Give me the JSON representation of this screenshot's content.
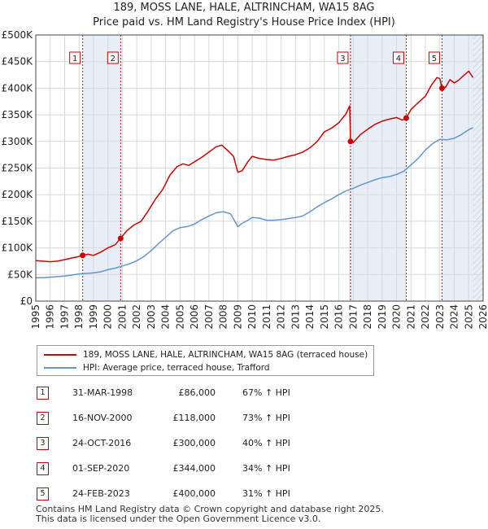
{
  "title_line1": "189, MOSS LANE, HALE, ALTRINCHAM, WA15 8AG",
  "title_line2": "Price paid vs. HM Land Registry's House Price Index (HPI)",
  "colors": {
    "property": "#cc0000",
    "hpi": "#6495cd",
    "shade": "#e8eef8",
    "grid": "#d8d8d8"
  },
  "legend": {
    "property_label": "189, MOSS LANE, HALE, ALTRINCHAM, WA15 8AG (terraced house)",
    "hpi_label": "HPI: Average price, terraced house, Trafford"
  },
  "sales": [
    {
      "num": "1",
      "date": "31-MAR-1998",
      "price": "£86,000",
      "hpi": "67% ↑ HPI"
    },
    {
      "num": "2",
      "date": "16-NOV-2000",
      "price": "£118,000",
      "hpi": "73% ↑ HPI"
    },
    {
      "num": "3",
      "date": "24-OCT-2016",
      "price": "£300,000",
      "hpi": "40% ↑ HPI"
    },
    {
      "num": "4",
      "date": "01-SEP-2020",
      "price": "£344,000",
      "hpi": "34% ↑ HPI"
    },
    {
      "num": "5",
      "date": "24-FEB-2023",
      "price": "£400,000",
      "hpi": "31% ↑ HPI"
    }
  ],
  "footer_line1": "Contains HM Land Registry data © Crown copyright and database right 2025.",
  "footer_line2": "This data is licensed under the Open Government Licence v3.0.",
  "chart_data": {
    "type": "line",
    "title": "189, MOSS LANE, HALE, ALTRINCHAM, WA15 8AG",
    "subtitle": "Price paid vs. HM Land Registry's House Price Index (HPI)",
    "xlabel": "",
    "ylabel": "",
    "xlim": [
      1995,
      2026
    ],
    "ylim": [
      0,
      500000
    ],
    "yticks": [
      0,
      50000,
      100000,
      150000,
      200000,
      250000,
      300000,
      350000,
      400000,
      450000,
      500000
    ],
    "ytick_labels": [
      "£0",
      "£50K",
      "£100K",
      "£150K",
      "£200K",
      "£250K",
      "£300K",
      "£350K",
      "£400K",
      "£450K",
      "£500K"
    ],
    "xticks": [
      "1995",
      "1996",
      "1997",
      "1998",
      "1999",
      "2000",
      "2001",
      "2002",
      "2003",
      "2004",
      "2005",
      "2006",
      "2007",
      "2008",
      "2009",
      "2010",
      "2011",
      "2012",
      "2013",
      "2014",
      "2015",
      "2016",
      "2017",
      "2018",
      "2019",
      "2020",
      "2021",
      "2022",
      "2023",
      "2024",
      "2025",
      "2026"
    ],
    "grid": true,
    "series": [
      {
        "name": "189, MOSS LANE, HALE, ALTRINCHAM, WA15 8AG (terraced house)",
        "color": "#cc0000",
        "x": [
          1995.0,
          1995.5,
          1996.0,
          1996.5,
          1997.0,
          1997.5,
          1998.0,
          1998.25,
          1998.6,
          1999.0,
          1999.5,
          2000.0,
          2000.5,
          2000.88,
          2001.3,
          2001.8,
          2002.3,
          2002.8,
          2003.3,
          2003.8,
          2004.3,
          2004.8,
          2005.2,
          2005.6,
          2006.0,
          2006.5,
          2007.0,
          2007.5,
          2007.9,
          2008.3,
          2008.7,
          2009.0,
          2009.3,
          2009.7,
          2010.0,
          2010.5,
          2011.0,
          2011.5,
          2012.0,
          2012.5,
          2013.0,
          2013.5,
          2014.0,
          2014.5,
          2015.0,
          2015.5,
          2016.0,
          2016.5,
          2016.75,
          2016.81,
          2017.0,
          2017.5,
          2018.0,
          2018.5,
          2019.0,
          2019.5,
          2020.0,
          2020.4,
          2020.67,
          2021.0,
          2021.5,
          2022.0,
          2022.4,
          2022.8,
          2023.0,
          2023.15,
          2023.4,
          2023.7,
          2024.0,
          2024.3,
          2024.7,
          2025.0,
          2025.3
        ],
        "y": [
          76000,
          75000,
          74000,
          75000,
          78000,
          81000,
          84000,
          86000,
          88000,
          86000,
          92000,
          100000,
          106000,
          118000,
          132000,
          143000,
          150000,
          170000,
          192000,
          210000,
          237000,
          253000,
          258000,
          255000,
          262000,
          270000,
          280000,
          290000,
          293000,
          283000,
          272000,
          242000,
          245000,
          262000,
          272000,
          268000,
          266000,
          265000,
          268000,
          272000,
          275000,
          280000,
          288000,
          300000,
          318000,
          325000,
          335000,
          352000,
          367000,
          300000,
          298000,
          313000,
          323000,
          332000,
          338000,
          342000,
          345000,
          340000,
          344000,
          360000,
          373000,
          385000,
          405000,
          420000,
          418000,
          400000,
          402000,
          416000,
          410000,
          415000,
          425000,
          432000,
          420000
        ]
      },
      {
        "name": "HPI: Average price, terraced house, Trafford",
        "color": "#6495cd",
        "x": [
          1995.0,
          1995.5,
          1996.0,
          1996.5,
          1997.0,
          1997.5,
          1998.0,
          1998.5,
          1999.0,
          1999.5,
          2000.0,
          2000.5,
          2001.0,
          2001.5,
          2002.0,
          2002.5,
          2003.0,
          2003.5,
          2004.0,
          2004.5,
          2005.0,
          2005.5,
          2006.0,
          2006.5,
          2007.0,
          2007.5,
          2008.0,
          2008.5,
          2009.0,
          2009.3,
          2009.7,
          2010.0,
          2010.5,
          2011.0,
          2011.5,
          2012.0,
          2012.5,
          2013.0,
          2013.5,
          2014.0,
          2014.5,
          2015.0,
          2015.5,
          2016.0,
          2016.5,
          2017.0,
          2017.5,
          2018.0,
          2018.5,
          2019.0,
          2019.5,
          2020.0,
          2020.5,
          2021.0,
          2021.5,
          2022.0,
          2022.5,
          2023.0,
          2023.5,
          2024.0,
          2024.5,
          2025.0,
          2025.3
        ],
        "y": [
          44000,
          44000,
          45000,
          46000,
          47000,
          49000,
          51000,
          52000,
          53000,
          55000,
          59000,
          62000,
          66000,
          70000,
          76000,
          84000,
          95000,
          108000,
          120000,
          132000,
          138000,
          140000,
          145000,
          153000,
          160000,
          166000,
          168000,
          164000,
          140000,
          146000,
          152000,
          157000,
          156000,
          152000,
          152000,
          153000,
          155000,
          157000,
          160000,
          168000,
          177000,
          185000,
          192000,
          200000,
          207000,
          212000,
          218000,
          223000,
          228000,
          232000,
          234000,
          238000,
          244000,
          256000,
          268000,
          284000,
          296000,
          304000,
          303000,
          306000,
          313000,
          322000,
          326000
        ]
      }
    ],
    "sales": [
      {
        "label": "1",
        "x": 1998.25,
        "y": 86000
      },
      {
        "label": "2",
        "x": 2000.88,
        "y": 118000
      },
      {
        "label": "3",
        "x": 2016.81,
        "y": 300000
      },
      {
        "label": "4",
        "x": 2020.67,
        "y": 344000
      },
      {
        "label": "5",
        "x": 2023.15,
        "y": 400000
      }
    ],
    "shaded_spans": [
      [
        1998.25,
        2000.88
      ],
      [
        2016.81,
        2020.67
      ],
      [
        2023.15,
        2026
      ]
    ],
    "hatched_from": 2025.3
  }
}
